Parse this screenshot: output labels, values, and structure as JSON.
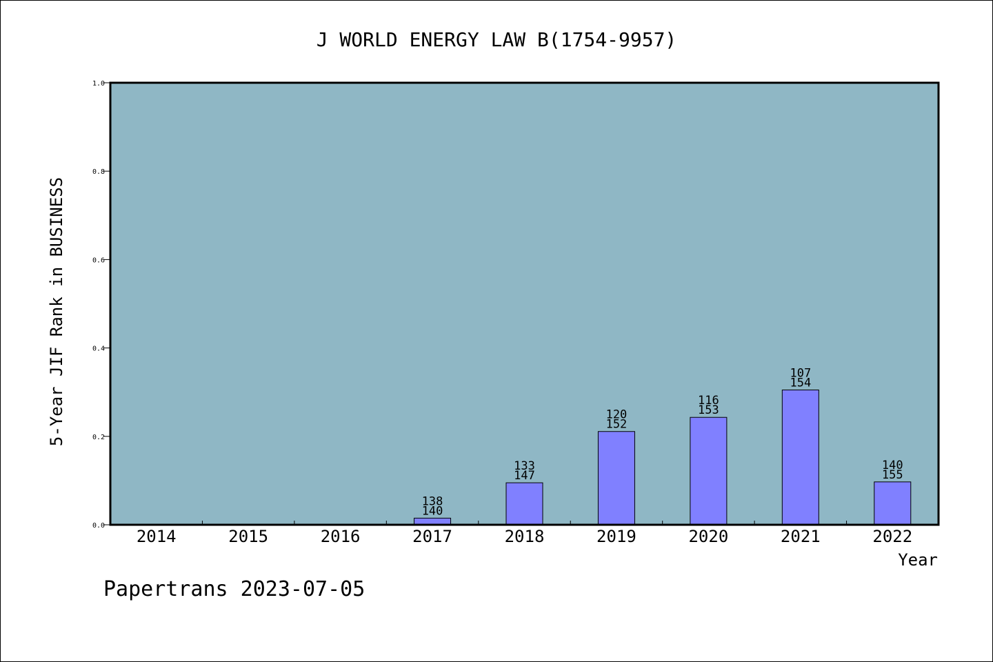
{
  "chart_data": {
    "type": "bar",
    "title": "J WORLD ENERGY LAW B(1754-9957)",
    "xlabel": "Year",
    "ylabel": "5-Year JIF Rank in BUSINESS",
    "footer": "Papertrans 2023-07-05",
    "categories": [
      "2014",
      "2015",
      "2016",
      "2017",
      "2018",
      "2019",
      "2020",
      "2021",
      "2022"
    ],
    "values": [
      null,
      null,
      null,
      0.015,
      0.095,
      0.211,
      0.243,
      0.305,
      0.097
    ],
    "rank_labels": [
      null,
      null,
      null,
      "138",
      "133",
      "120",
      "116",
      "107",
      "140"
    ],
    "total_labels": [
      null,
      null,
      null,
      "140",
      "147",
      "152",
      "153",
      "154",
      "155"
    ],
    "ylim": [
      0,
      1.0
    ],
    "yticks": [
      0.0,
      0.2,
      0.4,
      0.6,
      0.8,
      1.0
    ],
    "ytick_labels": [
      "0.0",
      "0.2",
      "0.4",
      "0.6",
      "0.8",
      "1.0"
    ],
    "grid": false,
    "colors": {
      "plot_background": "#8fb7c5",
      "bar_fill": "#8080ff",
      "bar_stroke": "#000000",
      "axis": "#000000"
    }
  }
}
